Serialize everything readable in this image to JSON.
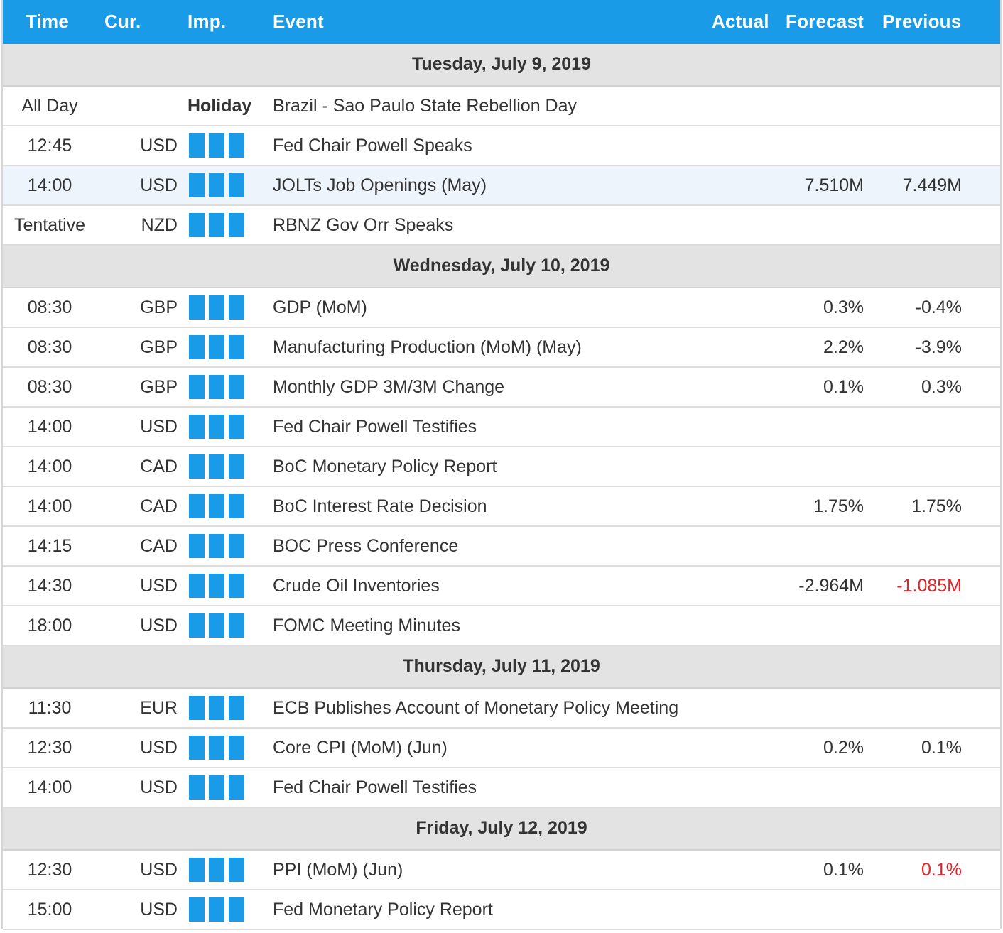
{
  "header": {
    "time": "Time",
    "cur": "Cur.",
    "imp": "Imp.",
    "event": "Event",
    "actual": "Actual",
    "forecast": "Forecast",
    "previous": "Previous"
  },
  "colors": {
    "accent": "#1a9be8",
    "negative": "#e0262b",
    "day_bg": "#e3e3e3"
  },
  "impact_icon": "three-bar-importance-icon",
  "days": [
    {
      "label": "Tuesday, July 9, 2019",
      "events": [
        {
          "time": "All Day",
          "cur": "",
          "holiday": "Holiday",
          "event": "Brazil - Sao Paulo State Rebellion Day",
          "forecast": "",
          "previous": ""
        },
        {
          "time": "12:45",
          "cur": "USD",
          "event": "Fed Chair Powell Speaks",
          "forecast": "",
          "previous": ""
        },
        {
          "time": "14:00",
          "cur": "USD",
          "event": "JOLTs Job Openings (May)",
          "forecast": "7.510M",
          "previous": "7.449M",
          "highlight": true
        },
        {
          "time": "Tentative",
          "cur": "NZD",
          "event": "RBNZ Gov Orr Speaks",
          "forecast": "",
          "previous": ""
        }
      ]
    },
    {
      "label": "Wednesday, July 10, 2019",
      "events": [
        {
          "time": "08:30",
          "cur": "GBP",
          "event": "GDP (MoM)",
          "forecast": "0.3%",
          "previous": "-0.4%"
        },
        {
          "time": "08:30",
          "cur": "GBP",
          "event": "Manufacturing Production (MoM) (May)",
          "forecast": "2.2%",
          "previous": "-3.9%"
        },
        {
          "time": "08:30",
          "cur": "GBP",
          "event": "Monthly GDP 3M/3M Change",
          "forecast": "0.1%",
          "previous": "0.3%"
        },
        {
          "time": "14:00",
          "cur": "USD",
          "event": "Fed Chair Powell Testifies",
          "forecast": "",
          "previous": ""
        },
        {
          "time": "14:00",
          "cur": "CAD",
          "event": "BoC Monetary Policy Report",
          "forecast": "",
          "previous": ""
        },
        {
          "time": "14:00",
          "cur": "CAD",
          "event": "BoC Interest Rate Decision",
          "forecast": "1.75%",
          "previous": "1.75%"
        },
        {
          "time": "14:15",
          "cur": "CAD",
          "event": "BOC Press Conference",
          "forecast": "",
          "previous": ""
        },
        {
          "time": "14:30",
          "cur": "USD",
          "event": "Crude Oil Inventories",
          "forecast": "-2.964M",
          "previous": "-1.085M",
          "previous_red": true
        },
        {
          "time": "18:00",
          "cur": "USD",
          "event": "FOMC Meeting Minutes",
          "forecast": "",
          "previous": ""
        }
      ]
    },
    {
      "label": "Thursday, July 11, 2019",
      "events": [
        {
          "time": "11:30",
          "cur": "EUR",
          "event": "ECB Publishes Account of Monetary Policy Meeting",
          "forecast": "",
          "previous": ""
        },
        {
          "time": "12:30",
          "cur": "USD",
          "event": "Core CPI (MoM) (Jun)",
          "forecast": "0.2%",
          "previous": "0.1%"
        },
        {
          "time": "14:00",
          "cur": "USD",
          "event": "Fed Chair Powell Testifies",
          "forecast": "",
          "previous": ""
        }
      ]
    },
    {
      "label": "Friday, July 12, 2019",
      "events": [
        {
          "time": "12:30",
          "cur": "USD",
          "event": "PPI (MoM) (Jun)",
          "forecast": "0.1%",
          "previous": "0.1%",
          "previous_red": true
        },
        {
          "time": "15:00",
          "cur": "USD",
          "event": "Fed Monetary Policy Report",
          "forecast": "",
          "previous": ""
        }
      ]
    }
  ]
}
